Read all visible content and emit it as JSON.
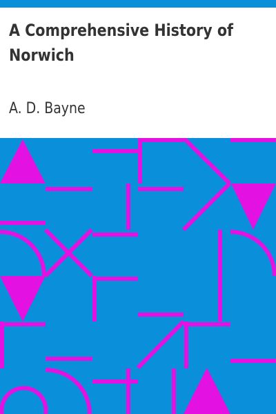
{
  "book": {
    "title": "A Comprehensive History of Norwich",
    "author": "A. D. Bayne"
  },
  "colors": {
    "accent_bar": "#0a8fdb",
    "art_background": "#0a8fdb",
    "art_pattern": "#e312e3",
    "text": "#333333"
  }
}
